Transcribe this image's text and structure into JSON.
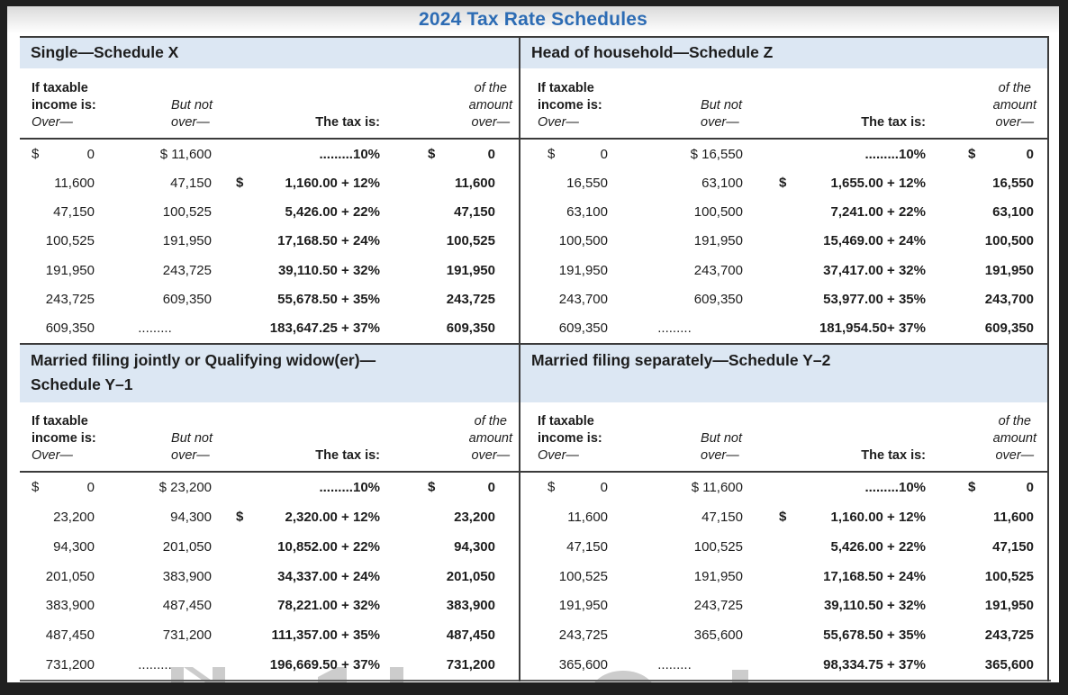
{
  "page": {
    "title": "2024 Tax Rate Schedules"
  },
  "colors": {
    "title_blue": "#2d6cb4",
    "section_band_blue": "#dce7f3",
    "rule_dark": "#3b3b3b",
    "text": "#1d1d1d",
    "watermark_gray": "#cccccc"
  },
  "column_headers": {
    "if_taxable_line1": "If taxable",
    "if_taxable_line2": "income is:",
    "over": "Over—",
    "but_not_line1": "But not",
    "but_not_line2": "over—",
    "the_tax_is": "The tax is:",
    "of_the_line1": "of the",
    "of_the_line2": "amount",
    "of_the_line3": "over—"
  },
  "schedules": [
    {
      "id": "single-schedule-x",
      "title_lines": [
        "Single—Schedule X"
      ],
      "rows": [
        [
          {
            "dollar": true,
            "t": "0"
          },
          {
            "t": "$ 11,600"
          },
          {
            "t": ".........10%"
          },
          {
            "dollar": true,
            "t": "0"
          }
        ],
        [
          {
            "t": "11,600"
          },
          {
            "t": "47,150"
          },
          {
            "dollar": true,
            "t": "1,160.00 + 12%"
          },
          {
            "t": "11,600"
          }
        ],
        [
          {
            "t": "47,150"
          },
          {
            "t": "100,525"
          },
          {
            "t": "5,426.00 + 22%"
          },
          {
            "t": "47,150"
          }
        ],
        [
          {
            "t": "100,525"
          },
          {
            "t": "191,950"
          },
          {
            "t": "17,168.50 + 24%"
          },
          {
            "t": "100,525"
          }
        ],
        [
          {
            "t": "191,950"
          },
          {
            "t": "243,725"
          },
          {
            "t": "39,110.50 + 32%"
          },
          {
            "t": "191,950"
          }
        ],
        [
          {
            "t": "243,725"
          },
          {
            "t": "609,350"
          },
          {
            "t": "55,678.50 + 35%"
          },
          {
            "t": "243,725"
          }
        ],
        [
          {
            "t": "609,350"
          },
          {
            "center": true,
            "t": "........."
          },
          {
            "t": "183,647.25 + 37%"
          },
          {
            "t": "609,350"
          }
        ]
      ]
    },
    {
      "id": "head-of-household-schedule-z",
      "title_lines": [
        "Head of household—Schedule Z"
      ],
      "rows": [
        [
          {
            "dollar": true,
            "t": "0"
          },
          {
            "t": "$ 16,550"
          },
          {
            "t": ".........10%"
          },
          {
            "dollar": true,
            "t": "0"
          }
        ],
        [
          {
            "t": "16,550"
          },
          {
            "t": "63,100"
          },
          {
            "dollar": true,
            "t": "1,655.00 + 12%"
          },
          {
            "t": "16,550"
          }
        ],
        [
          {
            "t": "63,100"
          },
          {
            "t": "100,500"
          },
          {
            "t": "7,241.00 + 22%"
          },
          {
            "t": "63,100"
          }
        ],
        [
          {
            "t": "100,500"
          },
          {
            "t": "191,950"
          },
          {
            "t": "15,469.00 + 24%"
          },
          {
            "t": "100,500"
          }
        ],
        [
          {
            "t": "191,950"
          },
          {
            "t": "243,700"
          },
          {
            "t": "37,417.00 + 32%"
          },
          {
            "t": "191,950"
          }
        ],
        [
          {
            "t": "243,700"
          },
          {
            "t": "609,350"
          },
          {
            "t": "53,977.00 + 35%"
          },
          {
            "t": "243,700"
          }
        ],
        [
          {
            "t": "609,350"
          },
          {
            "center": true,
            "t": "........."
          },
          {
            "t": "181,954.50+ 37%"
          },
          {
            "t": "609,350"
          }
        ]
      ]
    },
    {
      "id": "married-filing-jointly-schedule-y1",
      "title_lines": [
        "Married filing jointly or Qualifying widow(er)—",
        "Schedule Y–1"
      ],
      "rows": [
        [
          {
            "dollar": true,
            "t": "0"
          },
          {
            "t": "$ 23,200"
          },
          {
            "t": ".........10%"
          },
          {
            "dollar": true,
            "t": "0"
          }
        ],
        [
          {
            "t": "23,200"
          },
          {
            "t": "94,300"
          },
          {
            "dollar": true,
            "t": "2,320.00 + 12%"
          },
          {
            "t": "23,200"
          }
        ],
        [
          {
            "t": "94,300"
          },
          {
            "t": "201,050"
          },
          {
            "t": "10,852.00 + 22%"
          },
          {
            "t": "94,300"
          }
        ],
        [
          {
            "t": "201,050"
          },
          {
            "t": "383,900"
          },
          {
            "t": "34,337.00 + 24%"
          },
          {
            "t": "201,050"
          }
        ],
        [
          {
            "t": "383,900"
          },
          {
            "t": "487,450"
          },
          {
            "t": "78,221.00 + 32%"
          },
          {
            "t": "383,900"
          }
        ],
        [
          {
            "t": "487,450"
          },
          {
            "t": "731,200"
          },
          {
            "t": "111,357.00 + 35%"
          },
          {
            "t": "487,450"
          }
        ],
        [
          {
            "t": "731,200"
          },
          {
            "center": true,
            "t": "........."
          },
          {
            "t": "196,669.50 + 37%"
          },
          {
            "t": "731,200"
          }
        ]
      ]
    },
    {
      "id": "married-filing-separately-schedule-y2",
      "title_lines": [
        "Married filing separately—Schedule Y–2"
      ],
      "rows": [
        [
          {
            "dollar": true,
            "t": "0"
          },
          {
            "t": "$ 11,600"
          },
          {
            "t": ".........10%"
          },
          {
            "dollar": true,
            "t": "0"
          }
        ],
        [
          {
            "t": "11,600"
          },
          {
            "t": "47,150"
          },
          {
            "dollar": true,
            "t": "1,160.00 + 12%"
          },
          {
            "t": "11,600"
          }
        ],
        [
          {
            "t": "47,150"
          },
          {
            "t": "100,525"
          },
          {
            "t": "5,426.00 + 22%"
          },
          {
            "t": "47,150"
          }
        ],
        [
          {
            "t": "100,525"
          },
          {
            "t": "191,950"
          },
          {
            "t": "17,168.50 + 24%"
          },
          {
            "t": "100,525"
          }
        ],
        [
          {
            "t": "191,950"
          },
          {
            "t": "243,725"
          },
          {
            "t": "39,110.50 + 32%"
          },
          {
            "t": "191,950"
          }
        ],
        [
          {
            "t": "243,725"
          },
          {
            "t": "365,600"
          },
          {
            "t": "55,678.50 + 35%"
          },
          {
            "t": "243,725"
          }
        ],
        [
          {
            "t": "365,600"
          },
          {
            "center": true,
            "t": "........."
          },
          {
            "t": "98,334.75 + 37%"
          },
          {
            "t": "365,600"
          }
        ]
      ]
    }
  ]
}
